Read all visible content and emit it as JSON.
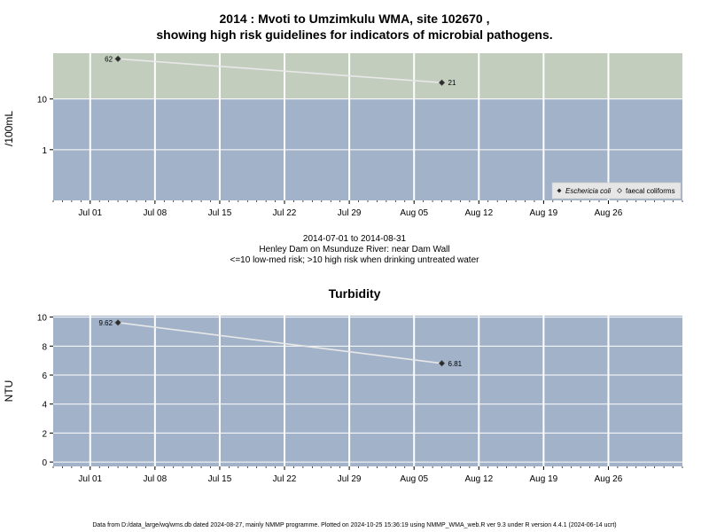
{
  "page": {
    "title_line1": "2014 : Mvoti to Umzimkulu WMA, site 102670 ,",
    "title_line2": "showing high risk guidelines for indicators of microbial pathogens.",
    "sub_date": "2014-07-01 to 2014-08-31",
    "sub_site": "Henley Dam on Msunduze River: near Dam Wall",
    "sub_risk": "<=10 low-med risk; >10 high risk when drinking untreated water",
    "footer": "Data from D:/data_large/wq/wms.db dated 2024-08-27, mainly NMMP programme. Plotted on 2024-10-25 15:36:19 using NMMP_WMA_web.R ver 9.3 under R version 4.4.1 (2024-06-14 ucrt)"
  },
  "colors": {
    "panel_low": "#a2b2c8",
    "panel_high": "#c2cdbe",
    "grid": "#ffffff",
    "line": "#e8e8e8",
    "point": "#2b2b2b"
  },
  "chart_data": [
    {
      "type": "line",
      "ylabel": "/100mL",
      "yscale": "log",
      "ylim": [
        0.1,
        80
      ],
      "x_range": [
        "2014-06-27",
        "2014-09-03"
      ],
      "x_ticks": [
        "2014-07-01",
        "2014-07-08",
        "2014-07-15",
        "2014-07-22",
        "2014-07-29",
        "2014-08-05",
        "2014-08-12",
        "2014-08-19",
        "2014-08-26"
      ],
      "x_tick_labels": [
        "Jul 01",
        "Jul 08",
        "Jul 15",
        "Jul 22",
        "Jul 29",
        "Aug 05",
        "Aug 12",
        "Aug 19",
        "Aug 26"
      ],
      "y_ticks": [
        1,
        10
      ],
      "y_tick_labels": [
        "1",
        "10"
      ],
      "high_risk_threshold": 10,
      "series": [
        {
          "name": "Eschericia coli",
          "marker": "filled-diamond",
          "x": [
            "2014-07-04",
            "2014-08-08"
          ],
          "y": [
            62,
            21
          ],
          "labels": [
            "62",
            "21"
          ]
        }
      ],
      "legend": {
        "position": "bottom-right",
        "entries": [
          "Eschericia coli",
          "faecal coliforms"
        ]
      }
    },
    {
      "type": "line",
      "title": "Turbidity",
      "ylabel": "NTU",
      "ylim": [
        -0.3,
        10.1
      ],
      "x_range": [
        "2014-06-27",
        "2014-09-03"
      ],
      "x_ticks": [
        "2014-07-01",
        "2014-07-08",
        "2014-07-15",
        "2014-07-22",
        "2014-07-29",
        "2014-08-05",
        "2014-08-12",
        "2014-08-19",
        "2014-08-26"
      ],
      "x_tick_labels": [
        "Jul 01",
        "Jul 08",
        "Jul 15",
        "Jul 22",
        "Jul 29",
        "Aug 05",
        "Aug 12",
        "Aug 19",
        "Aug 26"
      ],
      "y_ticks": [
        0,
        2,
        4,
        6,
        8,
        10
      ],
      "y_tick_labels": [
        "0",
        "2",
        "4",
        "6",
        "8",
        "10"
      ],
      "series": [
        {
          "marker": "filled-diamond",
          "x": [
            "2014-07-04",
            "2014-08-08"
          ],
          "y": [
            9.62,
            6.81
          ],
          "labels": [
            "9.62",
            "6.81"
          ]
        }
      ]
    }
  ]
}
